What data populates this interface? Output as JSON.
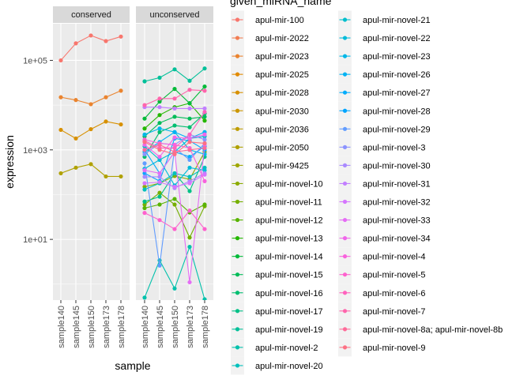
{
  "chart_data": {
    "type": "line",
    "facets": [
      "conserved",
      "unconserved"
    ],
    "xlabel": "sample",
    "ylabel": "expression",
    "yscale": "log10",
    "ylim": [
      0.44,
      660000
    ],
    "yticks": [
      10,
      1000,
      100000
    ],
    "ytick_labels": [
      "1e+01",
      "1e+03",
      "1e+05"
    ],
    "categories": [
      "sample140",
      "sample145",
      "sample150",
      "sample173",
      "sample178"
    ],
    "grid": true,
    "palette": "ggplot2 default hue (hcl, c=100, l=65)",
    "legend": {
      "title": "given_miRNA_name",
      "placement": "right",
      "items": [
        "apul-mir-100",
        "apul-mir-2022",
        "apul-mir-2023",
        "apul-mir-2025",
        "apul-mir-2028",
        "apul-mir-2030",
        "apul-mir-2036",
        "apul-mir-2050",
        "apul-mir-9425",
        "apul-mir-novel-10",
        "apul-mir-novel-11",
        "apul-mir-novel-12",
        "apul-mir-novel-13",
        "apul-mir-novel-14",
        "apul-mir-novel-15",
        "apul-mir-novel-16",
        "apul-mir-novel-17",
        "apul-mir-novel-19",
        "apul-mir-novel-2",
        "apul-mir-novel-20",
        "apul-mir-novel-21",
        "apul-mir-novel-22",
        "apul-mir-novel-23",
        "apul-mir-novel-26",
        "apul-mir-novel-27",
        "apul-mir-novel-28",
        "apul-mir-novel-29",
        "apul-mir-novel-3",
        "apul-mir-novel-30",
        "apul-mir-novel-31",
        "apul-mir-novel-32",
        "apul-mir-novel-33",
        "apul-mir-novel-34",
        "apul-mir-novel-4",
        "apul-mir-novel-5",
        "apul-mir-novel-6",
        "apul-mir-novel-7",
        "apul-mir-novel-8a; apul-mir-novel-8b",
        "apul-mir-novel-9"
      ]
    },
    "series": [
      {
        "name": "apul-mir-100",
        "facet": "conserved",
        "values": [
          100000,
          240000,
          360000,
          270000,
          340000
        ]
      },
      {
        "name": "apul-mir-2023",
        "facet": "conserved",
        "values": [
          15000,
          13000,
          10500,
          15000,
          21000
        ]
      },
      {
        "name": "apul-mir-2028",
        "facet": "conserved",
        "values": [
          2800,
          1800,
          2900,
          4300,
          3700
        ]
      },
      {
        "name": "apul-mir-2050",
        "facet": "conserved",
        "values": [
          300,
          400,
          480,
          255,
          255
        ]
      },
      {
        "name": "apul-mir-novel-10",
        "facet": "unconserved",
        "values": [
          150,
          180,
          260,
          220,
          900
        ]
      },
      {
        "name": "apul-mir-novel-11",
        "facet": "unconserved",
        "values": [
          60,
          110,
          60,
          11,
          55
        ]
      },
      {
        "name": "apul-mir-novel-12",
        "facet": "unconserved",
        "values": [
          50,
          60,
          80,
          40,
          60
        ]
      },
      {
        "name": "apul-mir-novel-13",
        "facet": "unconserved",
        "values": [
          3000,
          6000,
          9000,
          11000,
          4500
        ]
      },
      {
        "name": "apul-mir-novel-14",
        "facet": "unconserved",
        "values": [
          5000,
          12000,
          23000,
          11000,
          26000
        ]
      },
      {
        "name": "apul-mir-novel-15",
        "facet": "unconserved",
        "values": [
          2000,
          4000,
          5500,
          5000,
          5500
        ]
      },
      {
        "name": "apul-mir-novel-16",
        "facet": "unconserved",
        "values": [
          700,
          2500,
          3500,
          3200,
          6500
        ]
      },
      {
        "name": "apul-mir-novel-17",
        "facet": "unconserved",
        "values": [
          70,
          90,
          300,
          120,
          700
        ]
      },
      {
        "name": "apul-mir-novel-19",
        "facet": "unconserved",
        "values": [
          34000,
          41000,
          63000,
          35000,
          66000
        ]
      },
      {
        "name": "apul-mir-novel-2",
        "facet": "unconserved",
        "values": [
          0.5,
          3.4,
          0.8,
          6.8,
          0.45
        ]
      },
      {
        "name": "apul-mir-novel-20",
        "facet": "unconserved",
        "values": [
          130,
          180,
          300,
          250,
          400
        ]
      },
      {
        "name": "apul-mir-novel-21",
        "facet": "unconserved",
        "values": [
          1200,
          600,
          900,
          1800,
          2000
        ]
      },
      {
        "name": "apul-mir-novel-22",
        "facet": "unconserved",
        "values": [
          380,
          600,
          160,
          400,
          350
        ]
      },
      {
        "name": "apul-mir-novel-23",
        "facet": "unconserved",
        "values": [
          2200,
          3000,
          2500,
          1000,
          800
        ]
      },
      {
        "name": "apul-mir-novel-26",
        "facet": "unconserved",
        "values": [
          900,
          1500,
          2500,
          1800,
          2500
        ]
      },
      {
        "name": "apul-mir-novel-27",
        "facet": "unconserved",
        "values": [
          1000,
          300,
          900,
          700,
          1200
        ]
      },
      {
        "name": "apul-mir-novel-28",
        "facet": "unconserved",
        "values": [
          300,
          200,
          1800,
          1600,
          1000
        ]
      },
      {
        "name": "apul-mir-novel-29",
        "facet": "unconserved",
        "values": [
          500,
          2.6,
          1100,
          600,
          1400
        ]
      },
      {
        "name": "apul-mir-novel-3",
        "facet": "unconserved",
        "values": [
          800,
          1400,
          1300,
          2200,
          1700
        ]
      },
      {
        "name": "apul-mir-novel-30",
        "facet": "unconserved",
        "values": [
          250,
          250,
          140,
          200,
          300
        ]
      },
      {
        "name": "apul-mir-novel-31",
        "facet": "unconserved",
        "values": [
          9000,
          9000,
          8400,
          8400,
          8400
        ]
      },
      {
        "name": "apul-mir-novel-32",
        "facet": "unconserved",
        "values": [
          180,
          190,
          150,
          180,
          280
        ]
      },
      {
        "name": "apul-mir-novel-33",
        "facet": "unconserved",
        "values": [
          350,
          300,
          900,
          1.1,
          1300
        ]
      },
      {
        "name": "apul-mir-novel-34",
        "facet": "unconserved",
        "values": [
          1300,
          700,
          1900,
          1800,
          2200
        ]
      },
      {
        "name": "apul-mir-novel-4",
        "facet": "unconserved",
        "values": [
          1700,
          1400,
          1300,
          1100,
          200
        ]
      },
      {
        "name": "apul-mir-novel-5",
        "facet": "unconserved",
        "values": [
          39,
          27,
          17,
          44,
          17
        ]
      },
      {
        "name": "apul-mir-novel-6",
        "facet": "unconserved",
        "values": [
          1600,
          1100,
          1100,
          2200,
          7000
        ]
      },
      {
        "name": "apul-mir-novel-7",
        "facet": "unconserved",
        "values": [
          10000,
          14000,
          14000,
          22000,
          21000
        ]
      },
      {
        "name": "apul-mir-novel-8a; apul-mir-novel-8b",
        "facet": "unconserved",
        "values": [
          1000,
          1300,
          900,
          1000,
          1100
        ]
      },
      {
        "name": "apul-mir-novel-9",
        "facet": "unconserved",
        "values": [
          1500,
          1000,
          800,
          1500,
          1400
        ]
      }
    ]
  }
}
